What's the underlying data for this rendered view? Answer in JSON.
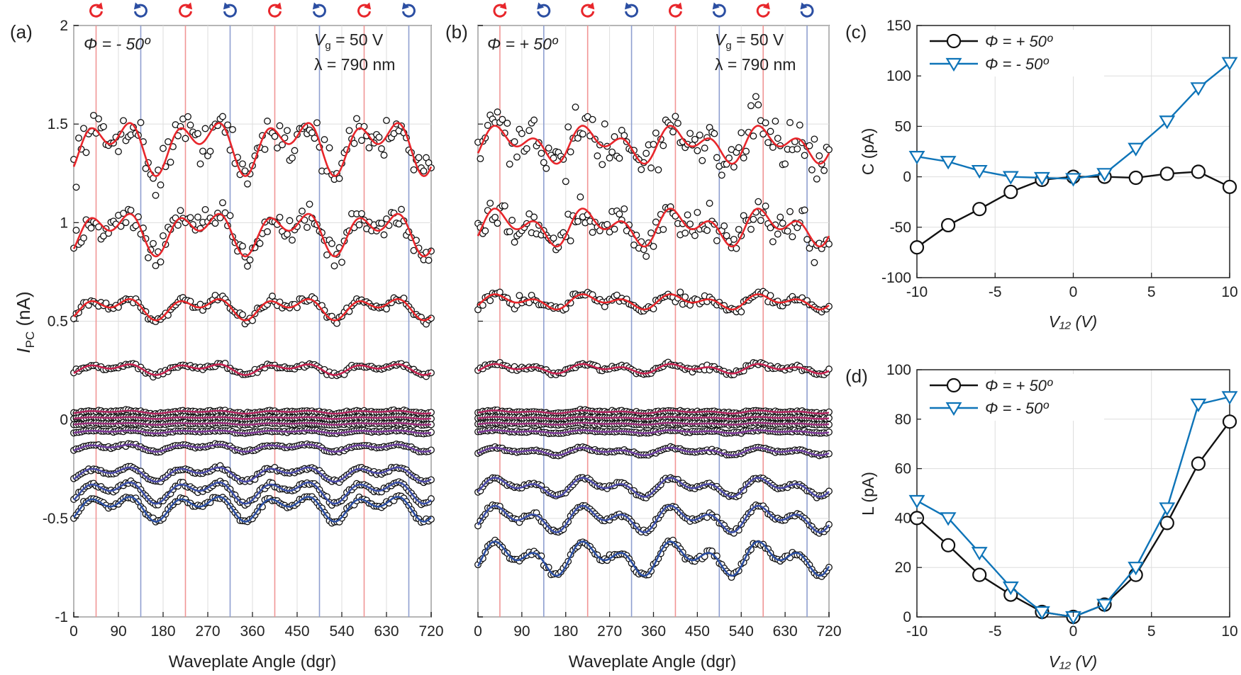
{
  "figure": {
    "panel_a": {
      "label": "(a)",
      "phi_text": "Φ = - 50º",
      "vg_text": "V",
      "vg_sub": "g",
      "vg_value": " = 50 V",
      "lambda_text": "λ = 790 nm"
    },
    "panel_b": {
      "label": "(b)",
      "phi_text": "Φ = + 50º",
      "vg_text": "V",
      "vg_sub": "g",
      "vg_value": " = 50 V",
      "lambda_text": "λ = 790 nm"
    },
    "panel_c": {
      "label": "(c)",
      "legend": [
        "Φ = + 50º",
        "Φ = - 50º"
      ]
    },
    "panel_d": {
      "label": "(d)",
      "legend": [
        "Φ = + 50º",
        "Φ = - 50º"
      ]
    },
    "shared_ylabel": "I",
    "shared_ylabel_sub": "PC",
    "shared_ylabel_unit": " (nA)",
    "colors": {
      "red": "#e8262b",
      "blue": "#2b4ea2",
      "cyan": "#0e74b8",
      "black": "#111111",
      "purple": "#9a2f7a",
      "grid": "#dddddd"
    }
  },
  "chart_data": [
    {
      "id": "a",
      "type": "scatter",
      "title": "",
      "xlabel": "Waveplate Angle (dgr)",
      "ylabel": "I_PC (nA)",
      "xlim": [
        0,
        720
      ],
      "ylim": [
        -1,
        2
      ],
      "xticks": [
        0,
        90,
        180,
        270,
        360,
        450,
        540,
        630,
        720
      ],
      "yticks": [
        -1,
        -0.5,
        0,
        0.5,
        1,
        1.5,
        2
      ],
      "ytick_labels": [
        "-1",
        "-0.5",
        "0",
        "0.5",
        "1",
        "1.5",
        "2"
      ],
      "marker_lines": {
        "red": [
          45,
          225,
          405,
          585
        ],
        "blue": [
          135,
          315,
          495,
          675
        ]
      },
      "series": [
        {
          "offset": 1.4,
          "amp": 0.15,
          "noise": 0.07,
          "fit_color": "#e8262b"
        },
        {
          "offset": 0.96,
          "amp": 0.12,
          "noise": 0.05,
          "fit_color": "#e8262b"
        },
        {
          "offset": 0.57,
          "amp": 0.06,
          "noise": 0.015,
          "fit_color": "#e8262b"
        },
        {
          "offset": 0.26,
          "amp": 0.03,
          "noise": 0.008,
          "fit_color": "#c7224f"
        },
        {
          "offset": 0.04,
          "amp": 0.008,
          "noise": 0.004,
          "fit_color": "#b0245f"
        },
        {
          "offset": 0.01,
          "amp": 0.005,
          "noise": 0.003,
          "fit_color": "#a82a6a"
        },
        {
          "offset": -0.02,
          "amp": 0.005,
          "noise": 0.003,
          "fit_color": "#9a2f7a"
        },
        {
          "offset": -0.06,
          "amp": 0.008,
          "noise": 0.003,
          "fit_color": "#7d3794"
        },
        {
          "offset": -0.14,
          "amp": 0.02,
          "noise": 0.004,
          "fit_color": "#6a3d9e"
        },
        {
          "offset": -0.27,
          "amp": 0.04,
          "noise": 0.006,
          "fit_color": "#4a48a6"
        },
        {
          "offset": -0.36,
          "amp": 0.06,
          "noise": 0.007,
          "fit_color": "#3a4fa8"
        },
        {
          "offset": -0.44,
          "amp": 0.07,
          "noise": 0.008,
          "fit_color": "#2b4ea2"
        }
      ]
    },
    {
      "id": "b",
      "type": "scatter",
      "title": "",
      "xlabel": "Waveplate Angle (dgr)",
      "ylabel": "",
      "xlim": [
        0,
        720
      ],
      "ylim": [
        -1,
        2
      ],
      "xticks": [
        0,
        90,
        180,
        270,
        360,
        450,
        540,
        630,
        720
      ],
      "marker_lines": {
        "red": [
          45,
          225,
          405,
          585
        ],
        "blue": [
          135,
          315,
          495,
          675
        ]
      },
      "series": [
        {
          "offset": 1.4,
          "amp": 0.1,
          "noise": 0.08,
          "fit_color": "#e8262b"
        },
        {
          "offset": 0.98,
          "amp": 0.1,
          "noise": 0.06,
          "fit_color": "#e8262b"
        },
        {
          "offset": 0.6,
          "amp": 0.04,
          "noise": 0.02,
          "fit_color": "#e8262b"
        },
        {
          "offset": 0.26,
          "amp": 0.025,
          "noise": 0.008,
          "fit_color": "#c7224f"
        },
        {
          "offset": 0.04,
          "amp": 0.008,
          "noise": 0.004,
          "fit_color": "#b0245f"
        },
        {
          "offset": 0.01,
          "amp": 0.005,
          "noise": 0.003,
          "fit_color": "#a82a6a"
        },
        {
          "offset": -0.02,
          "amp": 0.005,
          "noise": 0.003,
          "fit_color": "#9a2f7a"
        },
        {
          "offset": -0.06,
          "amp": 0.008,
          "noise": 0.003,
          "fit_color": "#7d3794"
        },
        {
          "offset": -0.16,
          "amp": 0.02,
          "noise": 0.004,
          "fit_color": "#6a3d9e"
        },
        {
          "offset": -0.34,
          "amp": 0.05,
          "noise": 0.006,
          "fit_color": "#4a48a6"
        },
        {
          "offset": -0.5,
          "amp": 0.07,
          "noise": 0.007,
          "fit_color": "#3a4fa8"
        },
        {
          "offset": -0.7,
          "amp": 0.09,
          "noise": 0.01,
          "fit_color": "#2b4ea2"
        }
      ]
    },
    {
      "id": "c",
      "type": "line",
      "title": "",
      "xlabel": "V₁₂ (V)",
      "ylabel": "C (pA)",
      "xlim": [
        -10,
        10
      ],
      "ylim": [
        -100,
        150
      ],
      "xticks": [
        -10,
        -5,
        0,
        5,
        10
      ],
      "yticks": [
        -100,
        -50,
        0,
        50,
        100,
        150
      ],
      "legend_position": "top-left",
      "x": [
        -10,
        -8,
        -6,
        -4,
        -2,
        0,
        2,
        4,
        6,
        8,
        10
      ],
      "series": [
        {
          "name": "Φ = + 50º",
          "marker": "circle",
          "color": "#111111",
          "values": [
            -70,
            -48,
            -32,
            -15,
            -3,
            0,
            0,
            -1,
            3,
            5,
            -10
          ]
        },
        {
          "name": "Φ = - 50º",
          "marker": "triangle-down",
          "color": "#0e74b8",
          "values": [
            20,
            15,
            6,
            0,
            -1,
            -2,
            3,
            28,
            55,
            88,
            113
          ]
        }
      ]
    },
    {
      "id": "d",
      "type": "line",
      "title": "",
      "xlabel": "V₁₂ (V)",
      "ylabel": "L (pA)",
      "xlim": [
        -10,
        10
      ],
      "ylim": [
        0,
        100
      ],
      "xticks": [
        -10,
        -5,
        0,
        5,
        10
      ],
      "yticks": [
        0,
        20,
        40,
        60,
        80,
        100
      ],
      "legend_position": "top-left",
      "x": [
        -10,
        -8,
        -6,
        -4,
        -2,
        0,
        2,
        4,
        6,
        8,
        10
      ],
      "series": [
        {
          "name": "Φ = + 50º",
          "marker": "circle",
          "color": "#111111",
          "values": [
            40,
            29,
            17,
            9,
            2,
            0,
            5,
            17,
            38,
            62,
            79
          ]
        },
        {
          "name": "Φ = - 50º",
          "marker": "triangle-down",
          "color": "#0e74b8",
          "values": [
            47,
            40,
            26,
            12,
            2,
            0,
            5,
            20,
            44,
            86,
            89
          ]
        }
      ]
    }
  ]
}
